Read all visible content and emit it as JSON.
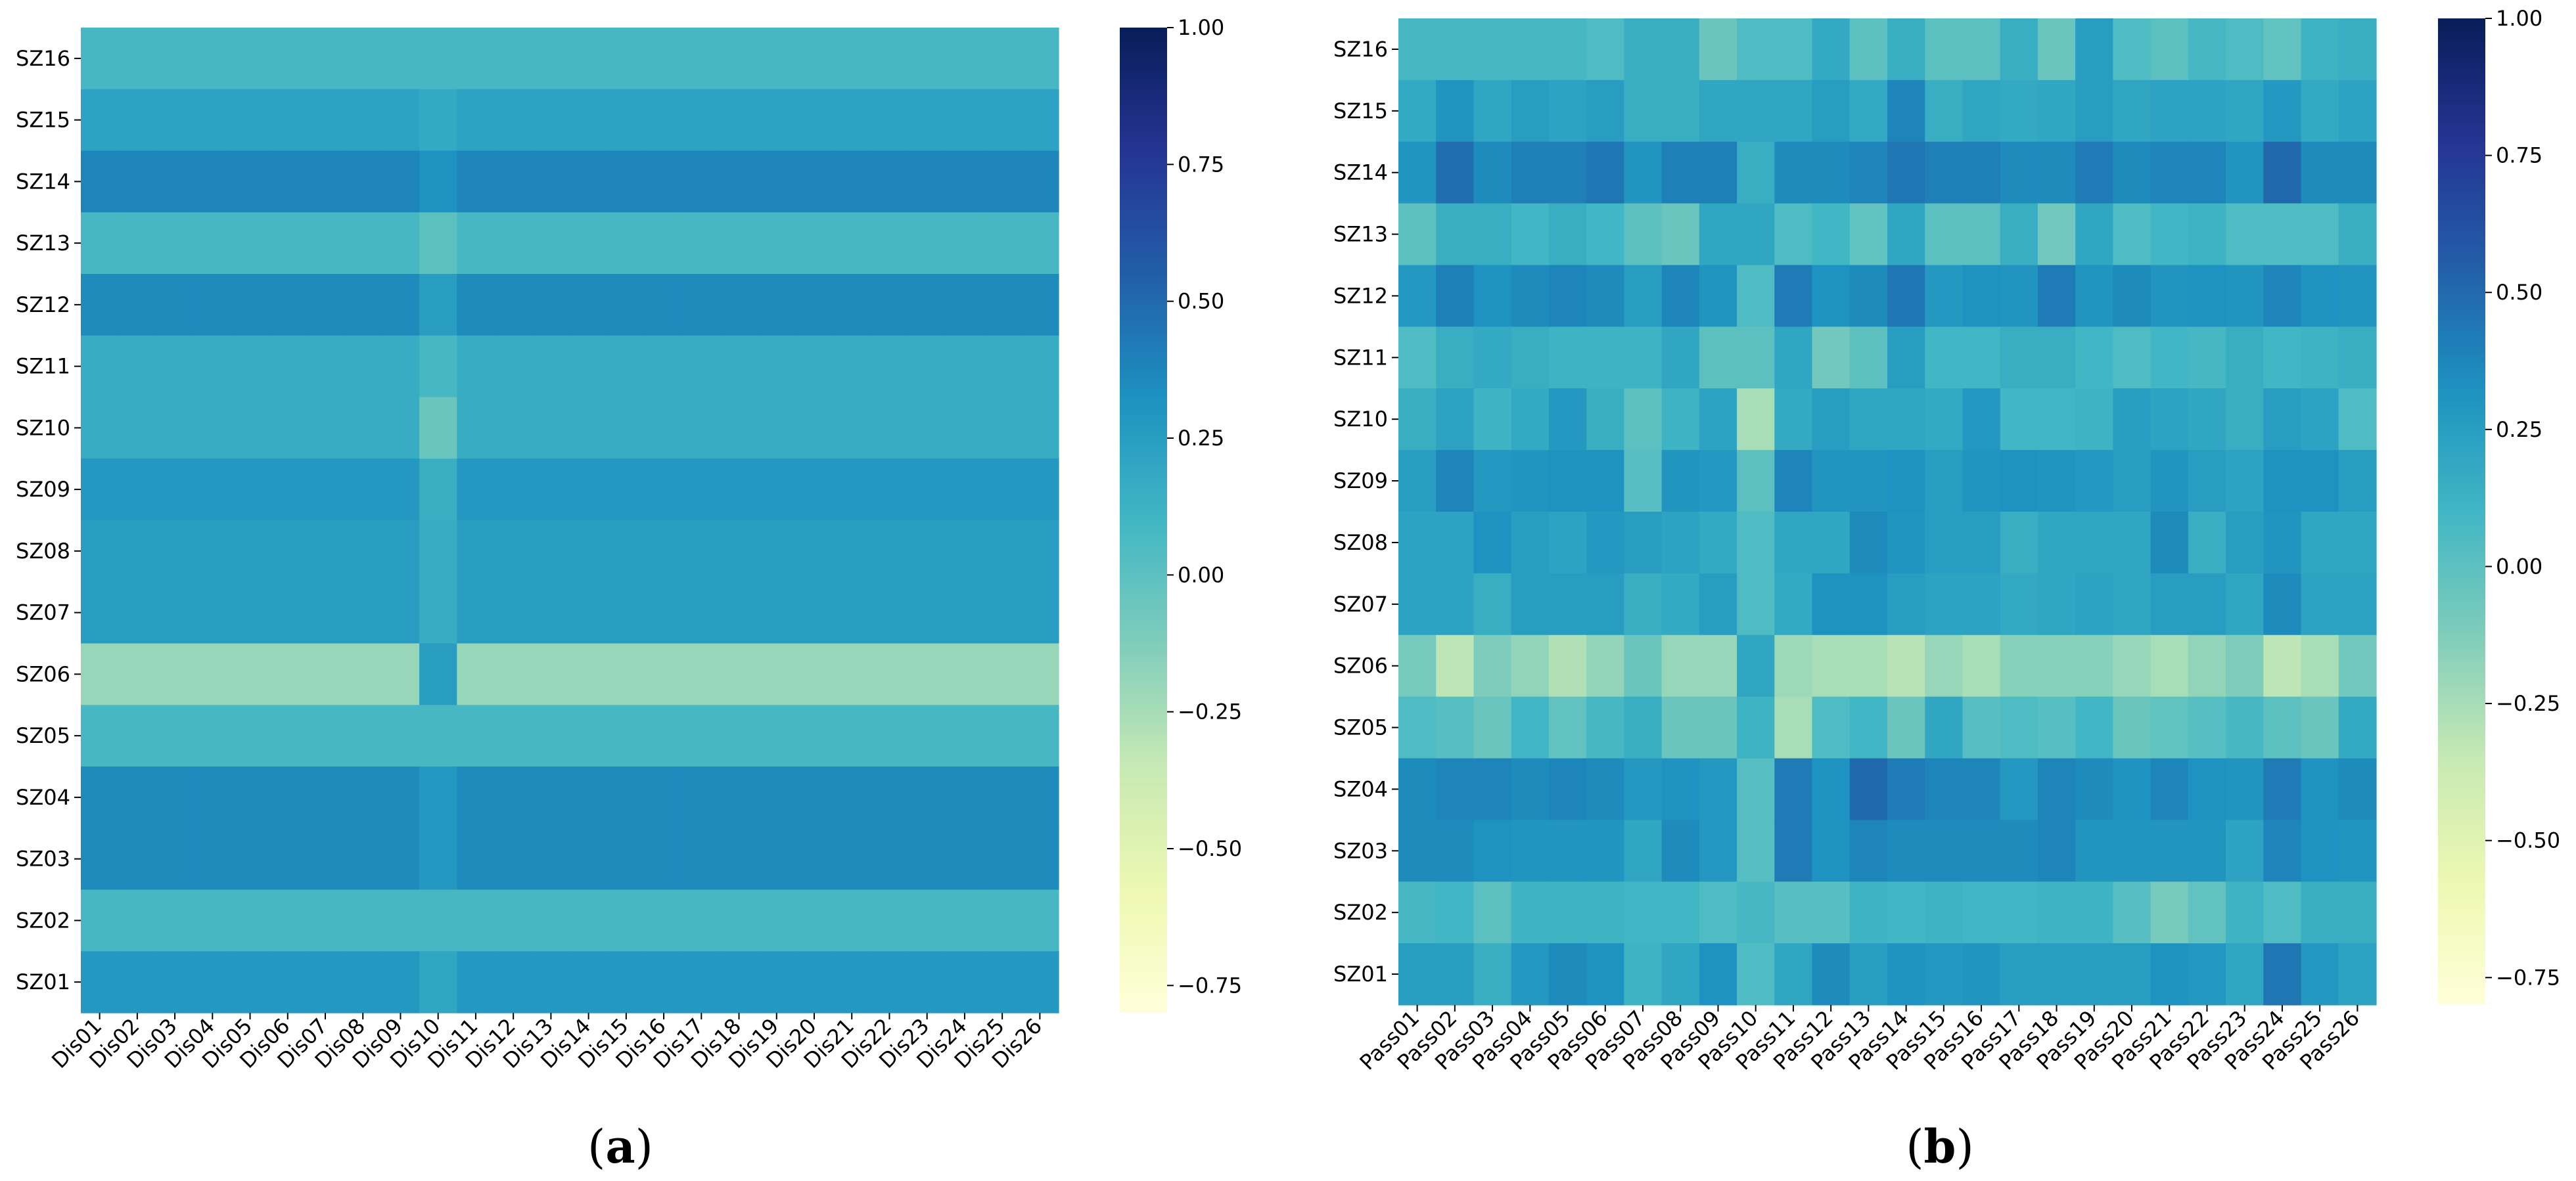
{
  "colorscale": {
    "name": "YlGnBu",
    "stops": [
      "#ffffd9",
      "#edf8b1",
      "#c7e9b4",
      "#7fcdbb",
      "#41b6c4",
      "#1d91c0",
      "#225ea8",
      "#253494",
      "#081d58"
    ],
    "vmin": -0.8,
    "vmax": 1.0
  },
  "chart_data": [
    {
      "type": "heatmap",
      "panel_label": "(a)",
      "x_labels": [
        "Dis01",
        "Dis02",
        "Dis03",
        "Dis04",
        "Dis05",
        "Dis06",
        "Dis07",
        "Dis08",
        "Dis09",
        "Dis10",
        "Dis11",
        "Dis12",
        "Dis13",
        "Dis14",
        "Dis15",
        "Dis16",
        "Dis17",
        "Dis18",
        "Dis19",
        "Dis20",
        "Dis21",
        "Dis22",
        "Dis23",
        "Dis24",
        "Dis25",
        "Dis26"
      ],
      "y_labels": [
        "SZ16",
        "SZ15",
        "SZ14",
        "SZ13",
        "SZ12",
        "SZ11",
        "SZ10",
        "SZ09",
        "SZ08",
        "SZ07",
        "SZ06",
        "SZ05",
        "SZ04",
        "SZ03",
        "SZ02",
        "SZ01"
      ],
      "row_values": [
        0.08,
        0.22,
        0.38,
        0.08,
        0.35,
        0.16,
        0.16,
        0.28,
        0.25,
        0.25,
        -0.2,
        0.08,
        0.35,
        0.35,
        0.08,
        0.28
      ],
      "column10_values": [
        0.08,
        0.18,
        0.32,
        0.0,
        0.25,
        0.08,
        -0.05,
        0.15,
        0.16,
        0.16,
        0.25,
        0.08,
        0.28,
        0.28,
        0.08,
        0.2
      ],
      "colorbar_ticks": [
        1.0,
        0.75,
        0.5,
        0.25,
        0.0,
        -0.25,
        -0.5,
        -0.75
      ],
      "colorbar_tick_labels": [
        "1.00",
        "0.75",
        "0.50",
        "0.25",
        "0.00",
        "−0.25",
        "−0.50",
        "−0.75"
      ],
      "vmin": -0.8,
      "vmax": 1.0
    },
    {
      "type": "heatmap",
      "panel_label": "(b)",
      "x_labels": [
        "Pass01",
        "Pass02",
        "Pass03",
        "Pass04",
        "Pass05",
        "Pass06",
        "Pass07",
        "Pass08",
        "Pass09",
        "Pass10",
        "Pass11",
        "Pass12",
        "Pass13",
        "Pass14",
        "Pass15",
        "Pass16",
        "Pass17",
        "Pass18",
        "Pass19",
        "Pass20",
        "Pass21",
        "Pass22",
        "Pass23",
        "Pass24",
        "Pass25",
        "Pass26"
      ],
      "y_labels": [
        "SZ16",
        "SZ15",
        "SZ14",
        "SZ13",
        "SZ12",
        "SZ11",
        "SZ10",
        "SZ09",
        "SZ08",
        "SZ07",
        "SZ06",
        "SZ05",
        "SZ04",
        "SZ03",
        "SZ02",
        "SZ01"
      ],
      "values": [
        [
          0.08,
          0.08,
          0.08,
          0.08,
          0.08,
          0.05,
          0.15,
          0.15,
          -0.05,
          0.05,
          0.05,
          0.18,
          0.0,
          0.15,
          0.0,
          0.0,
          0.15,
          -0.05,
          0.25,
          0.05,
          0.0,
          0.08,
          0.05,
          -0.02,
          0.12,
          0.15
        ],
        [
          0.18,
          0.3,
          0.2,
          0.25,
          0.22,
          0.25,
          0.15,
          0.15,
          0.2,
          0.2,
          0.2,
          0.25,
          0.18,
          0.38,
          0.15,
          0.2,
          0.18,
          0.2,
          0.25,
          0.2,
          0.22,
          0.22,
          0.2,
          0.28,
          0.18,
          0.22
        ],
        [
          0.3,
          0.48,
          0.35,
          0.4,
          0.4,
          0.45,
          0.3,
          0.4,
          0.4,
          0.15,
          0.35,
          0.35,
          0.38,
          0.45,
          0.4,
          0.4,
          0.35,
          0.35,
          0.42,
          0.35,
          0.38,
          0.38,
          0.3,
          0.5,
          0.35,
          0.35
        ],
        [
          0.0,
          0.15,
          0.15,
          0.1,
          0.15,
          0.1,
          0.0,
          -0.05,
          0.2,
          0.2,
          0.05,
          0.1,
          -0.02,
          0.2,
          0.0,
          0.0,
          0.15,
          -0.08,
          0.2,
          0.05,
          0.1,
          0.12,
          0.05,
          0.05,
          0.05,
          0.15
        ],
        [
          0.28,
          0.4,
          0.32,
          0.35,
          0.38,
          0.35,
          0.25,
          0.38,
          0.3,
          0.05,
          0.42,
          0.32,
          0.35,
          0.45,
          0.28,
          0.32,
          0.3,
          0.42,
          0.3,
          0.35,
          0.3,
          0.32,
          0.3,
          0.38,
          0.32,
          0.3
        ],
        [
          0.05,
          0.15,
          0.18,
          0.15,
          0.12,
          0.12,
          0.12,
          0.2,
          0.0,
          0.0,
          0.2,
          -0.08,
          0.0,
          0.25,
          0.1,
          0.1,
          0.15,
          0.15,
          0.1,
          0.05,
          0.1,
          0.08,
          0.15,
          0.1,
          0.12,
          0.15
        ],
        [
          0.15,
          0.22,
          0.12,
          0.18,
          0.28,
          0.15,
          0.0,
          0.12,
          0.22,
          -0.25,
          0.18,
          0.25,
          0.2,
          0.2,
          0.18,
          0.28,
          0.1,
          0.1,
          0.12,
          0.25,
          0.22,
          0.2,
          0.15,
          0.25,
          0.22,
          0.05
        ],
        [
          0.25,
          0.38,
          0.28,
          0.3,
          0.32,
          0.32,
          0.02,
          0.3,
          0.28,
          0.0,
          0.38,
          0.3,
          0.3,
          0.32,
          0.25,
          0.3,
          0.32,
          0.3,
          0.28,
          0.25,
          0.3,
          0.25,
          0.22,
          0.32,
          0.32,
          0.25
        ],
        [
          0.22,
          0.22,
          0.32,
          0.25,
          0.22,
          0.28,
          0.25,
          0.22,
          0.18,
          0.05,
          0.2,
          0.2,
          0.35,
          0.3,
          0.25,
          0.25,
          0.15,
          0.2,
          0.2,
          0.2,
          0.35,
          0.15,
          0.25,
          0.3,
          0.2,
          0.2
        ],
        [
          0.22,
          0.22,
          0.15,
          0.25,
          0.25,
          0.25,
          0.15,
          0.18,
          0.25,
          0.05,
          0.18,
          0.32,
          0.32,
          0.25,
          0.22,
          0.22,
          0.18,
          0.2,
          0.22,
          0.2,
          0.25,
          0.25,
          0.2,
          0.35,
          0.22,
          0.22
        ],
        [
          -0.1,
          -0.32,
          -0.12,
          -0.18,
          -0.28,
          -0.18,
          -0.05,
          -0.2,
          -0.2,
          0.2,
          -0.22,
          -0.25,
          -0.25,
          -0.3,
          -0.2,
          -0.25,
          -0.15,
          -0.15,
          -0.15,
          -0.2,
          -0.25,
          -0.18,
          -0.12,
          -0.32,
          -0.25,
          -0.08
        ],
        [
          0.05,
          0.02,
          -0.05,
          0.1,
          -0.02,
          0.08,
          0.15,
          -0.05,
          -0.05,
          0.12,
          -0.25,
          0.05,
          0.1,
          -0.05,
          0.2,
          0.02,
          0.05,
          0.02,
          0.1,
          -0.05,
          -0.02,
          0.02,
          0.08,
          0.0,
          -0.05,
          0.18
        ],
        [
          0.35,
          0.38,
          0.38,
          0.35,
          0.38,
          0.35,
          0.28,
          0.32,
          0.28,
          0.02,
          0.42,
          0.32,
          0.5,
          0.42,
          0.38,
          0.38,
          0.28,
          0.38,
          0.35,
          0.32,
          0.38,
          0.32,
          0.3,
          0.42,
          0.32,
          0.35
        ],
        [
          0.35,
          0.35,
          0.32,
          0.3,
          0.3,
          0.3,
          0.2,
          0.35,
          0.28,
          0.02,
          0.42,
          0.32,
          0.38,
          0.35,
          0.35,
          0.35,
          0.35,
          0.38,
          0.3,
          0.3,
          0.3,
          0.3,
          0.22,
          0.38,
          0.32,
          0.3
        ],
        [
          0.08,
          0.1,
          0.0,
          0.12,
          0.12,
          0.12,
          0.1,
          0.1,
          0.05,
          0.08,
          0.02,
          0.02,
          0.12,
          0.1,
          0.12,
          0.1,
          0.1,
          0.12,
          0.12,
          0.02,
          -0.1,
          -0.02,
          0.12,
          0.05,
          0.15,
          0.15
        ],
        [
          0.25,
          0.25,
          0.15,
          0.28,
          0.35,
          0.32,
          0.12,
          0.2,
          0.32,
          0.05,
          0.2,
          0.35,
          0.25,
          0.32,
          0.28,
          0.3,
          0.25,
          0.25,
          0.25,
          0.25,
          0.32,
          0.28,
          0.2,
          0.45,
          0.28,
          0.22
        ]
      ],
      "colorbar_ticks": [
        1.0,
        0.75,
        0.5,
        0.25,
        0.0,
        -0.25,
        -0.5,
        -0.75
      ],
      "colorbar_tick_labels": [
        "1.00",
        "0.75",
        "0.50",
        "0.25",
        "0.00",
        "−0.25",
        "−0.50",
        "−0.75"
      ],
      "vmin": -0.8,
      "vmax": 1.0
    }
  ]
}
